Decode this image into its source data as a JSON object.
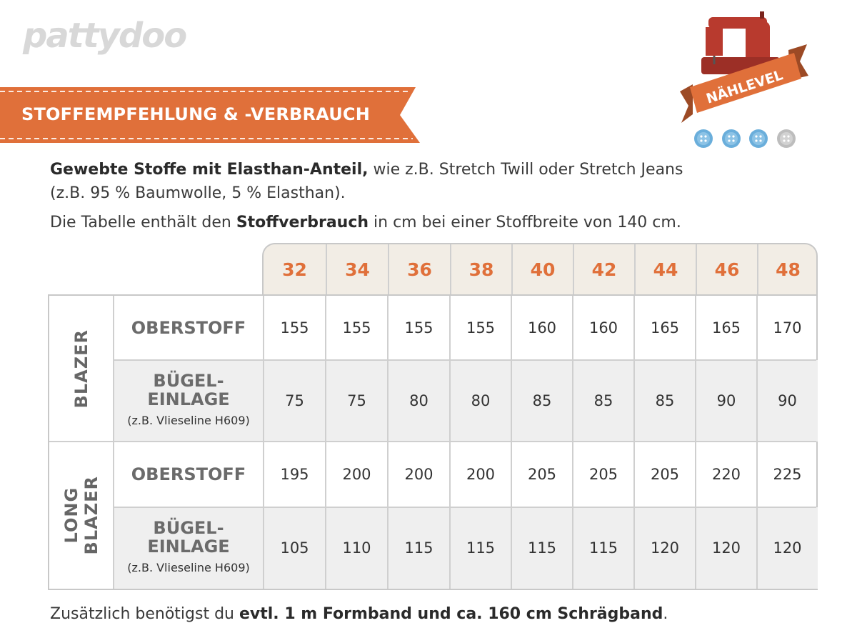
{
  "logo": "pattydoo",
  "banner": {
    "title": "STOFFEMPFEHLUNG & -VERBRAUCH"
  },
  "badge": {
    "label": "NÄHLEVEL",
    "level_filled": 3,
    "level_max": 4,
    "colors": {
      "machine": "#b83a2e",
      "ribbon": "#e0703a",
      "button_on": "#6aaedb",
      "button_off": "#bdbdbd"
    }
  },
  "intro": {
    "line1_bold": "Gewebte Stoffe mit Elasthan-Anteil,",
    "line1_rest": " wie z.B. Stretch Twill oder Stretch Jeans",
    "line2": "(z.B. 95 % Baumwolle, 5 % Elasthan).",
    "line3_a": "Die Tabelle enthält den ",
    "line3_bold": "Stoffverbrauch",
    "line3_b": " in cm bei einer Stoffbreite von 140 cm."
  },
  "table": {
    "sizes": [
      "32",
      "34",
      "36",
      "38",
      "40",
      "42",
      "44",
      "46",
      "48"
    ],
    "groups": [
      {
        "name": "BLAZER",
        "rows": [
          {
            "label": "OBERSTOFF",
            "sub": "",
            "values": [
              "155",
              "155",
              "155",
              "155",
              "160",
              "160",
              "165",
              "165",
              "170"
            ]
          },
          {
            "label": "BÜGEL-\nEINLAGE",
            "sub": "(z.B. Vlieseline H609)",
            "values": [
              "75",
              "75",
              "80",
              "80",
              "85",
              "85",
              "85",
              "90",
              "90"
            ]
          }
        ]
      },
      {
        "name": "LONG\nBLAZER",
        "rows": [
          {
            "label": "OBERSTOFF",
            "sub": "",
            "values": [
              "195",
              "200",
              "200",
              "200",
              "205",
              "205",
              "205",
              "220",
              "225"
            ]
          },
          {
            "label": "BÜGEL-\nEINLAGE",
            "sub": "(z.B. Vlieseline H609)",
            "values": [
              "105",
              "110",
              "115",
              "115",
              "115",
              "115",
              "120",
              "120",
              "120"
            ]
          }
        ]
      }
    ]
  },
  "footer": {
    "a": "Zusätzlich benötigst du ",
    "bold": "evtl. 1 m Formband und ca. 160 cm Schrägband",
    "b": "."
  },
  "colors": {
    "accent": "#e0703a",
    "header_bg": "#f2ede5",
    "shade": "#efefef",
    "border": "#c8c8c8"
  }
}
